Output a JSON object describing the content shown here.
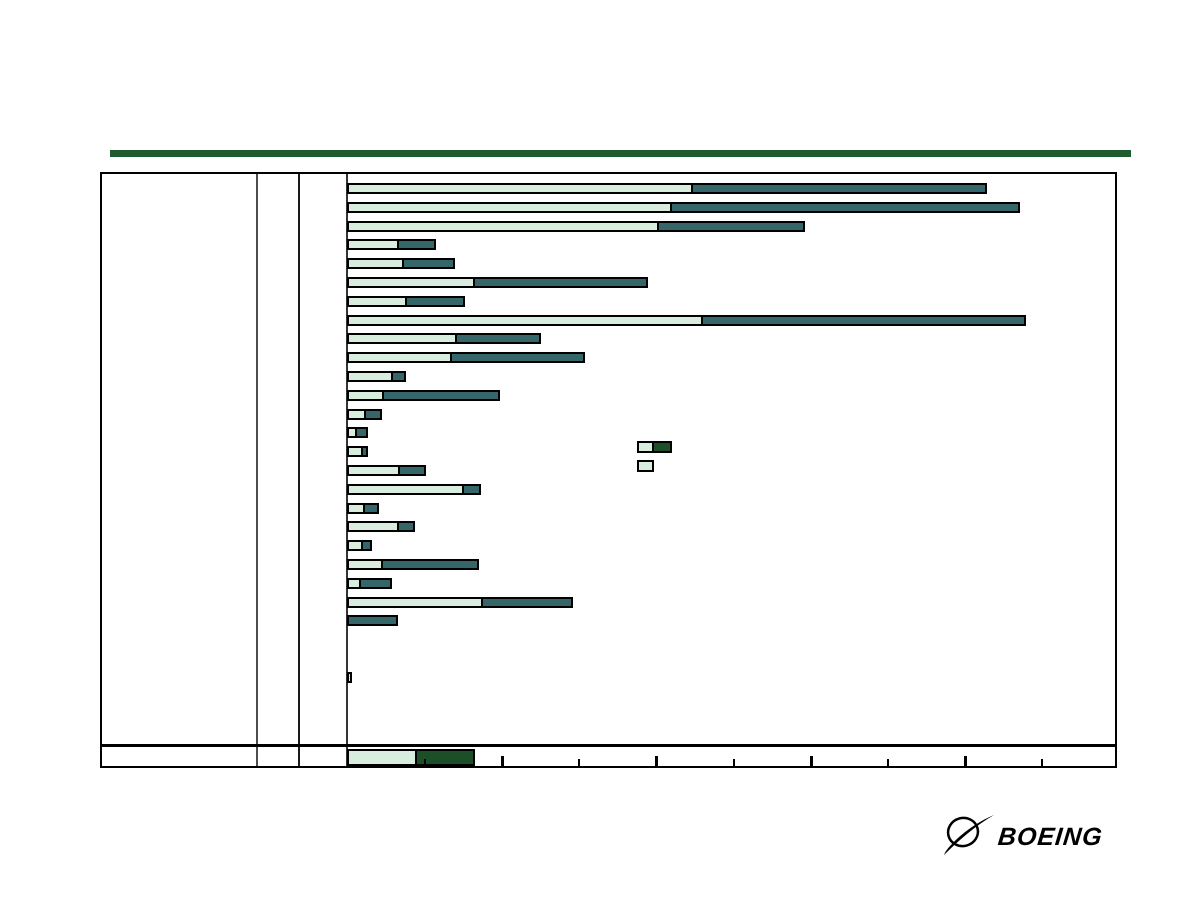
{
  "page": {
    "background": "#ffffff"
  },
  "header": {
    "rule_color": "#1e5b2f"
  },
  "colors": {
    "segment_light": "#d8eddd",
    "segment_teal": "#34666a",
    "segment_dark_green": "#1c4e28",
    "bar_border": "#000000",
    "table_border": "#000000"
  },
  "chart_data": {
    "type": "bar",
    "orientation": "horizontal",
    "stacked": true,
    "title": "",
    "xlabel": "",
    "ylabel": "",
    "grid": false,
    "x_axis": {
      "min": 0,
      "max": 10,
      "tick_interval": 1,
      "tick_labels_visible": false,
      "ticks_shown": 9
    },
    "row_labels_visible": false,
    "series": [
      {
        "name": "phase-1-light",
        "color_key": "segment_light"
      },
      {
        "name": "phase-2-teal",
        "color_key": "segment_teal"
      }
    ],
    "main_rows": [
      {
        "row": 0,
        "light": 4.49,
        "dark": 3.84
      },
      {
        "row": 1,
        "light": 4.22,
        "dark": 4.54
      },
      {
        "row": 2,
        "light": 4.05,
        "dark": 1.92
      },
      {
        "row": 3,
        "light": 0.67,
        "dark": 0.51
      },
      {
        "row": 4,
        "light": 0.74,
        "dark": 0.69
      },
      {
        "row": 5,
        "light": 1.66,
        "dark": 2.27
      },
      {
        "row": 6,
        "light": 0.78,
        "dark": 0.78
      },
      {
        "row": 7,
        "light": 4.62,
        "dark": 4.22
      },
      {
        "row": 8,
        "light": 1.43,
        "dark": 1.12
      },
      {
        "row": 9,
        "light": 1.36,
        "dark": 1.75
      },
      {
        "row": 10,
        "light": 0.6,
        "dark": 0.19
      },
      {
        "row": 11,
        "light": 0.48,
        "dark": 1.53
      },
      {
        "row": 12,
        "light": 0.25,
        "dark": 0.23
      },
      {
        "row": 13,
        "light": 0.13,
        "dark": 0.17
      },
      {
        "row": 14,
        "light": 0.21,
        "dark": 0.09
      },
      {
        "row": 15,
        "light": 0.69,
        "dark": 0.36
      },
      {
        "row": 16,
        "light": 1.52,
        "dark": 0.25
      },
      {
        "row": 17,
        "light": 0.23,
        "dark": 0.21
      },
      {
        "row": 18,
        "light": 0.67,
        "dark": 0.23
      },
      {
        "row": 19,
        "light": 0.21,
        "dark": 0.14
      },
      {
        "row": 20,
        "light": 0.47,
        "dark": 1.27
      },
      {
        "row": 21,
        "light": 0.18,
        "dark": 0.43
      },
      {
        "row": 22,
        "light": 1.76,
        "dark": 1.19
      },
      {
        "row": 23,
        "light": 0.0,
        "dark": 0.66
      }
    ],
    "detached_row": {
      "row": 26,
      "light": 0.06,
      "dark": 0
    },
    "summary_row": {
      "light": 0.91,
      "dark": 0.78,
      "dark_color_key": "segment_dark_green"
    }
  },
  "legend": {
    "entries": [
      {
        "name": "legend-entry-stacked",
        "swatches": [
          "segment_light",
          "segment_dark_green"
        ]
      },
      {
        "name": "legend-entry-light-only",
        "swatches": [
          "segment_light"
        ]
      }
    ]
  },
  "logo": {
    "text": "BOEING"
  }
}
